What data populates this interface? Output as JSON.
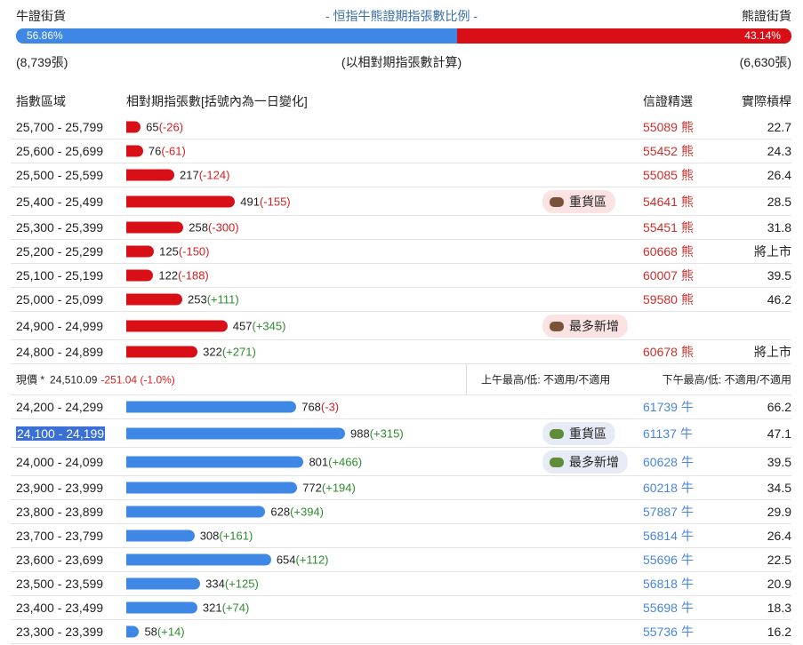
{
  "header": {
    "bull_label": "牛證街貨",
    "title": "- 恒指牛熊證期指張數比例 -",
    "bear_label": "熊證街貨",
    "bull_pct": 56.86,
    "bull_pct_label": "56.86%",
    "bear_pct": 43.14,
    "bear_pct_label": "43.14%",
    "bull_count": "(8,739張)",
    "note": "(以相對期指張數計算)",
    "bear_count": "(6,630張)"
  },
  "columns": [
    "指數區域",
    "相對期指張數[括號內為一日變化]",
    "信證精選",
    "實際槓桿"
  ],
  "bear_rows": [
    {
      "range": "25,700 - 25,799",
      "count": 65,
      "change": -26,
      "change_label": "(-26)",
      "code": "55089",
      "side": "熊",
      "leverage": 22.7
    },
    {
      "range": "25,600 - 25,699",
      "count": 76,
      "change": -61,
      "change_label": "(-61)",
      "code": "55452",
      "side": "熊",
      "leverage": 24.3
    },
    {
      "range": "25,500 - 25,599",
      "count": 217,
      "change": -124,
      "change_label": "(-124)",
      "code": "55085",
      "side": "熊",
      "leverage": 26.4
    },
    {
      "range": "25,400 - 25,499",
      "count": 491,
      "change": -155,
      "change_label": "(-155)",
      "tag": "重貨區",
      "code": "54641",
      "side": "熊",
      "leverage": 28.5
    },
    {
      "range": "25,300 - 25,399",
      "count": 258,
      "change": -300,
      "change_label": "(-300)",
      "code": "55451",
      "side": "熊",
      "leverage": 31.8
    },
    {
      "range": "25,200 - 25,299",
      "count": 125,
      "change": -150,
      "change_label": "(-150)",
      "code": "60668",
      "side": "熊",
      "leverage": "將上市"
    },
    {
      "range": "25,100 - 25,199",
      "count": 122,
      "change": -188,
      "change_label": "(-188)",
      "code": "60007",
      "side": "熊",
      "leverage": 39.5
    },
    {
      "range": "25,000 - 25,099",
      "count": 253,
      "change": 111,
      "change_label": "(+111)",
      "code": "59580",
      "side": "熊",
      "leverage": 46.2
    },
    {
      "range": "24,900 - 24,999",
      "count": 457,
      "change": 345,
      "change_label": "(+345)",
      "tag": "最多新增"
    },
    {
      "range": "24,800 - 24,899",
      "count": 322,
      "change": 271,
      "change_label": "(+271)",
      "code": "60678",
      "side": "熊",
      "leverage": "將上市"
    }
  ],
  "current": {
    "label": "現價 *",
    "price": "24,510.09",
    "change": "-251.04 (-1.0%)",
    "am": "上午最高/低: 不適用/不適用",
    "pm": "下午最高/低: 不適用/不適用"
  },
  "bull_rows": [
    {
      "range": "24,200 - 24,299",
      "count": 768,
      "change": -3,
      "change_label": "(-3)",
      "code": "61739",
      "side": "牛",
      "leverage": 66.2
    },
    {
      "range": "24,100 - 24,199",
      "count": 988,
      "change": 315,
      "change_label": "(+315)",
      "tag": "重貨區",
      "code": "61137",
      "side": "牛",
      "leverage": 47.1,
      "highlight": true
    },
    {
      "range": "24,000 - 24,099",
      "count": 801,
      "change": 466,
      "change_label": "(+466)",
      "tag": "最多新增",
      "code": "60628",
      "side": "牛",
      "leverage": 39.5
    },
    {
      "range": "23,900 - 23,999",
      "count": 772,
      "change": 194,
      "change_label": "(+194)",
      "code": "60218",
      "side": "牛",
      "leverage": 34.5
    },
    {
      "range": "23,800 - 23,899",
      "count": 628,
      "change": 394,
      "change_label": "(+394)",
      "code": "57887",
      "side": "牛",
      "leverage": 29.9
    },
    {
      "range": "23,700 - 23,799",
      "count": 308,
      "change": 161,
      "change_label": "(+161)",
      "code": "56814",
      "side": "牛",
      "leverage": 26.4
    },
    {
      "range": "23,600 - 23,699",
      "count": 654,
      "change": 112,
      "change_label": "(+112)",
      "code": "55696",
      "side": "牛",
      "leverage": 22.5
    },
    {
      "range": "23,500 - 23,599",
      "count": 334,
      "change": 125,
      "change_label": "(+125)",
      "code": "56818",
      "side": "牛",
      "leverage": 20.9
    },
    {
      "range": "23,400 - 23,499",
      "count": 321,
      "change": 74,
      "change_label": "(+74)",
      "code": "55698",
      "side": "牛",
      "leverage": 18.3
    },
    {
      "range": "23,300 - 23,399",
      "count": 58,
      "change": 14,
      "change_label": "(+14)",
      "code": "55736",
      "side": "牛",
      "leverage": 16.2
    }
  ]
}
